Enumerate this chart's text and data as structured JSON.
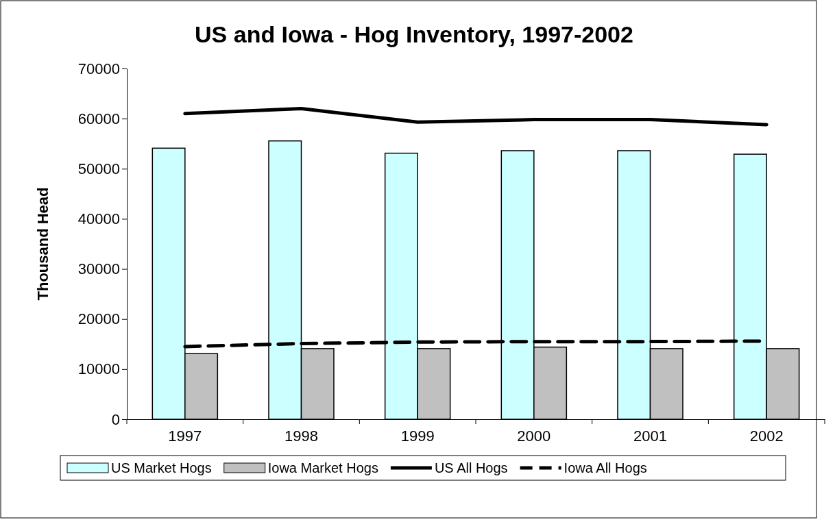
{
  "chart_data": {
    "type": "bar",
    "title": "US and Iowa - Hog Inventory, 1997-2002",
    "ylabel": "Thousand Head",
    "categories": [
      "1997",
      "1998",
      "1999",
      "2000",
      "2001",
      "2002"
    ],
    "series": [
      {
        "name": "US Market Hogs",
        "color": "#ccffff",
        "values": [
          54100,
          55550,
          53100,
          53600,
          53600,
          52900
        ]
      },
      {
        "name": "Iowa Market Hogs",
        "color": "#c0c0c0",
        "values": [
          13100,
          14100,
          14100,
          14400,
          14100,
          14100
        ]
      },
      {
        "name": "US All Hogs",
        "type": "line",
        "line_style": "solid",
        "color": "#000000",
        "values": [
          61000,
          62000,
          59300,
          59800,
          59800,
          58800
        ]
      },
      {
        "name": "Iowa All Hogs",
        "type": "line",
        "line_style": "dashed",
        "color": "#000000",
        "values": [
          14500,
          15100,
          15400,
          15500,
          15500,
          15600
        ]
      }
    ],
    "ylim": [
      0,
      70000
    ],
    "yticks": [
      0,
      10000,
      20000,
      30000,
      40000,
      50000,
      60000,
      70000
    ],
    "grid": false,
    "legend": "bottom"
  }
}
